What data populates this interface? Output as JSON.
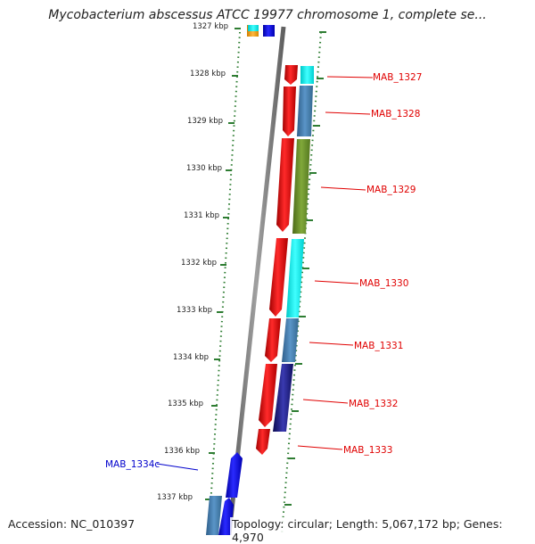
{
  "title": "Mycobacterium abscessus ATCC 19977 chromosome 1, complete se...",
  "footer": {
    "accession": "Accession: NC_010397",
    "summary": "Topology: circular; Length: 5,067,172 bp; Genes: 4,970"
  },
  "colors": {
    "forward_strand_red": "#ff0000",
    "reverse_strand_blue": "#0000ff",
    "cyan": "#00ffff",
    "steel_blue": "#4682b4",
    "olive": "#6b8e23",
    "dark_navy": "#1a1a80",
    "orange": "#ffa500",
    "backbone_gray": "#808080",
    "tick_green": "#2e7d32",
    "label_red": "#e00000",
    "label_blue": "#0000cc"
  },
  "ruler_labels": [
    "1327 kbp",
    "1328 kbp",
    "1329 kbp",
    "1330 kbp",
    "1331 kbp",
    "1332 kbp",
    "1333 kbp",
    "1334 kbp",
    "1335 kbp",
    "1336 kbp",
    "1337 kbp"
  ],
  "gene_labels": [
    {
      "text": "MAB_1327",
      "strand": "forward"
    },
    {
      "text": "MAB_1328",
      "strand": "forward"
    },
    {
      "text": "MAB_1329",
      "strand": "forward"
    },
    {
      "text": "MAB_1330",
      "strand": "forward"
    },
    {
      "text": "MAB_1331",
      "strand": "forward"
    },
    {
      "text": "MAB_1332",
      "strand": "forward"
    },
    {
      "text": "MAB_1333",
      "strand": "forward"
    },
    {
      "text": "MAB_1334c",
      "strand": "reverse"
    }
  ]
}
